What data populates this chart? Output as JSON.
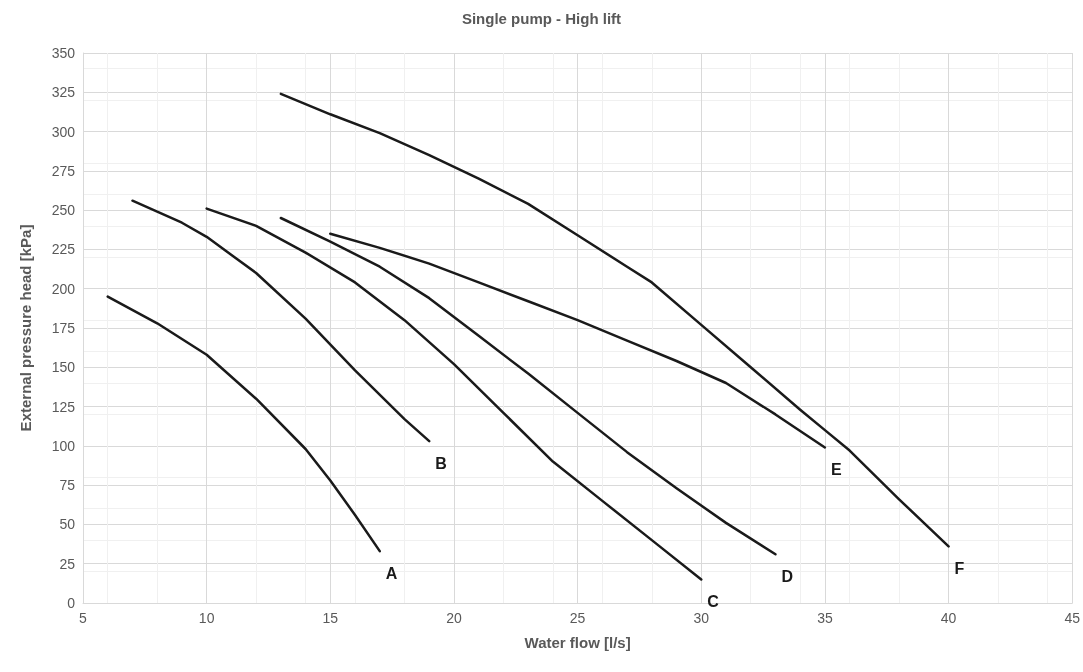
{
  "chart_data": {
    "type": "line",
    "title": "Single pump - High lift",
    "xlabel": "Water flow [l/s]",
    "ylabel": "External pressure head [kPa]",
    "xlim": [
      5,
      45
    ],
    "xticks": [
      5,
      10,
      15,
      20,
      25,
      30,
      35,
      40,
      45
    ],
    "ylim": [
      0,
      350
    ],
    "yticks": [
      0,
      25,
      50,
      75,
      100,
      125,
      150,
      175,
      200,
      225,
      250,
      275,
      300,
      325,
      350
    ],
    "grid": true,
    "legend": false,
    "marker": "none",
    "line_style": "solid",
    "series": [
      {
        "name": "A",
        "color": "#1a1a1a",
        "x": [
          6,
          8,
          10,
          12,
          14,
          15,
          16,
          17
        ],
        "values": [
          195,
          178,
          158,
          130,
          98,
          78,
          56,
          33
        ]
      },
      {
        "name": "B",
        "color": "#1a1a1a",
        "x": [
          7,
          9,
          10,
          12,
          14,
          16,
          18,
          19
        ],
        "values": [
          256,
          242,
          233,
          210,
          181,
          148,
          117,
          103
        ]
      },
      {
        "name": "C",
        "color": "#1a1a1a",
        "x": [
          10,
          12,
          14,
          16,
          18,
          20,
          22,
          24,
          26,
          28,
          30
        ],
        "values": [
          251,
          240,
          223,
          204,
          180,
          152,
          121,
          90,
          65,
          40,
          15
        ]
      },
      {
        "name": "D",
        "color": "#1a1a1a",
        "x": [
          13,
          15,
          17,
          19,
          21,
          23,
          25,
          27,
          29,
          31,
          33
        ],
        "values": [
          245,
          230,
          214,
          194,
          170,
          146,
          121,
          96,
          73,
          51,
          31
        ]
      },
      {
        "name": "E",
        "color": "#1a1a1a",
        "x": [
          15,
          17,
          19,
          21,
          23,
          25,
          27,
          29,
          31,
          33,
          35
        ],
        "values": [
          235,
          226,
          216,
          204,
          192,
          180,
          167,
          154,
          140,
          120,
          99
        ]
      },
      {
        "name": "F",
        "color": "#1a1a1a",
        "x": [
          13,
          15,
          17,
          19,
          21,
          23,
          25,
          27,
          28,
          30,
          32,
          34,
          35,
          36,
          38,
          40
        ],
        "values": [
          324,
          311,
          299,
          285,
          270,
          254,
          234,
          214,
          204,
          177,
          150,
          123,
          110,
          97,
          66,
          36
        ]
      }
    ]
  }
}
